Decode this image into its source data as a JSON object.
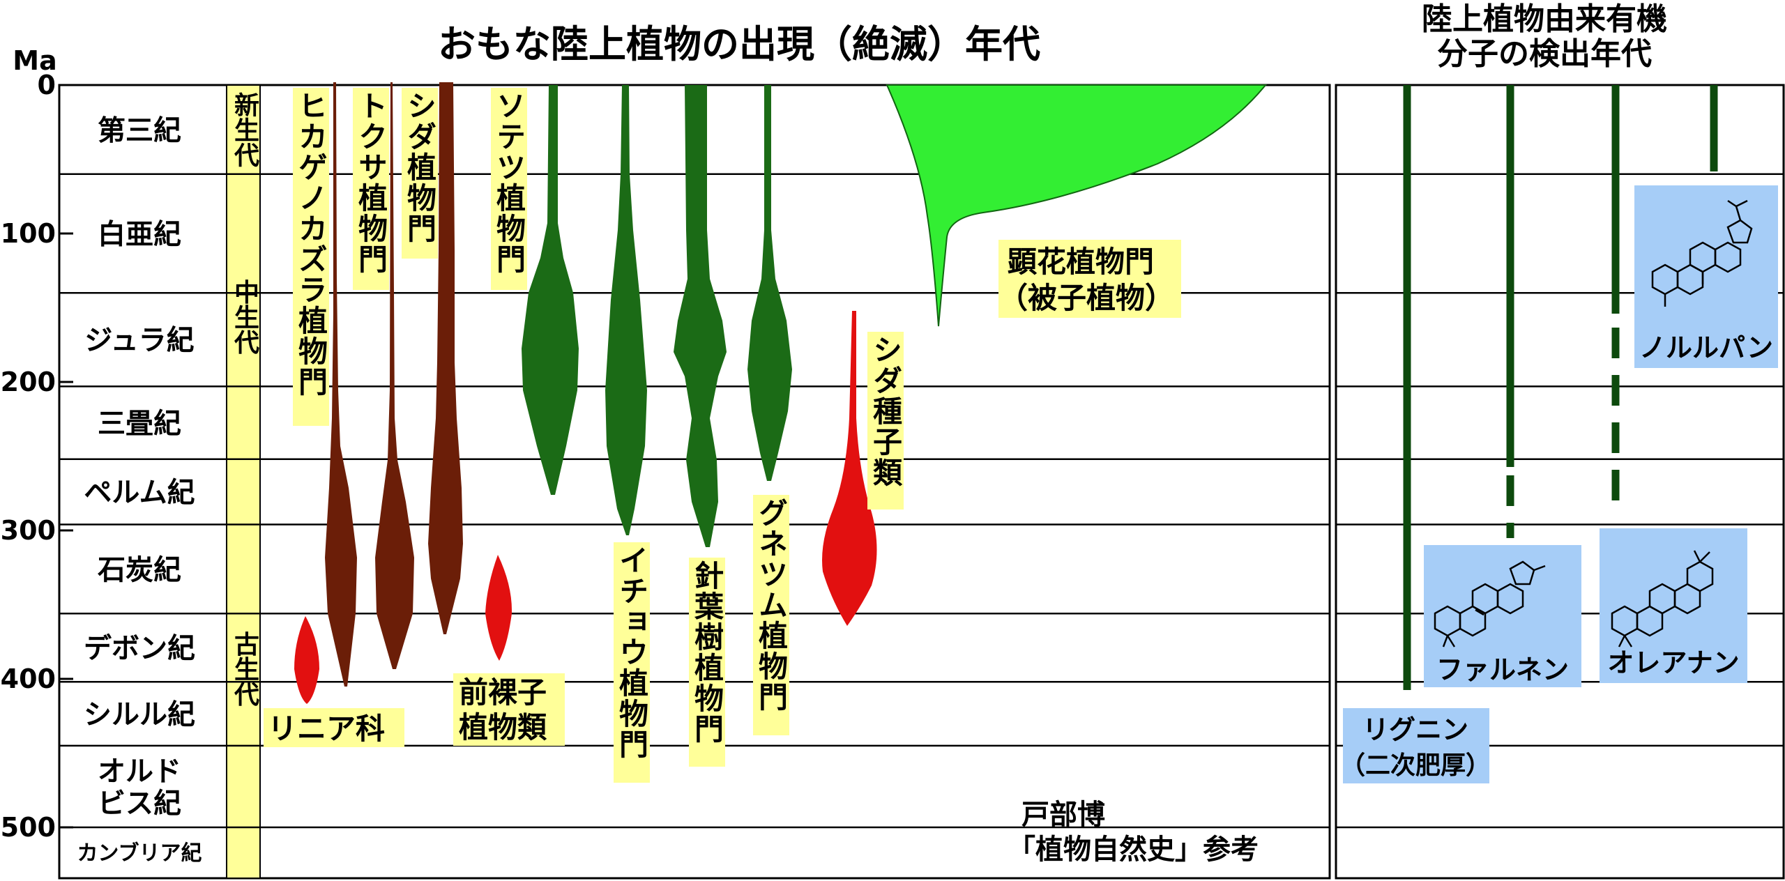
{
  "title": "おもな陸上植物の出現（絶滅）年代",
  "right_title": [
    "陸上植物由来有機",
    "分子の検出年代"
  ],
  "axis_unit": "Ma",
  "ticks": [
    {
      "label": "0",
      "ma": 0
    },
    {
      "label": "100",
      "ma": 100
    },
    {
      "label": "200",
      "ma": 200
    },
    {
      "label": "300",
      "ma": 300
    },
    {
      "label": "400",
      "ma": 400
    },
    {
      "label": "500",
      "ma": 500
    }
  ],
  "periods": [
    {
      "name": "第三紀",
      "start": 0,
      "end": 60
    },
    {
      "name": "白亜紀",
      "start": 60,
      "end": 140
    },
    {
      "name": "ジュラ紀",
      "start": 140,
      "end": 203
    },
    {
      "name": "三畳紀",
      "start": 203,
      "end": 252
    },
    {
      "name": "ペルム紀",
      "start": 252,
      "end": 296
    },
    {
      "name": "石炭紀",
      "start": 296,
      "end": 356
    },
    {
      "name": "デボン紀",
      "start": 356,
      "end": 402
    },
    {
      "name": "シルル紀",
      "start": 402,
      "end": 445
    },
    {
      "name": "オルド\nビス紀",
      "start": 445,
      "end": 500
    },
    {
      "name": "カンブリア紀",
      "start": 500,
      "end": 534
    }
  ],
  "eras": [
    {
      "name": "新生代",
      "start": 0,
      "end": 60
    },
    {
      "name": "中生代",
      "start": 60,
      "end": 252
    },
    {
      "name": "古生代",
      "start": 252,
      "end": 534
    }
  ],
  "taxa": [
    {
      "label": "ヒカゲノカズラ植物門",
      "group": "brown"
    },
    {
      "label": "トクサ植物門",
      "group": "brown"
    },
    {
      "label": "シダ植物門",
      "group": "brown"
    },
    {
      "label": "ソテツ植物門",
      "group": "green"
    },
    {
      "label": "イチョウ植物門",
      "group": "green"
    },
    {
      "label": "針葉樹植物門",
      "group": "green"
    },
    {
      "label": "グネツム植物門",
      "group": "green"
    },
    {
      "label": "顕花植物門",
      "group": "lightgreen"
    },
    {
      "label": "（被子植物）",
      "group": "lightgreen"
    },
    {
      "label": "シダ種子類",
      "group": "red"
    },
    {
      "label": "リニア科",
      "group": "red"
    },
    {
      "label": "前裸子",
      "group": "red"
    },
    {
      "label": "植物類",
      "group": "red"
    }
  ],
  "molecules": [
    {
      "label": "リグニン",
      "sublabel": "（二次肥厚）"
    },
    {
      "label": "ファルネン",
      "sublabel": ""
    },
    {
      "label": "オレアナン",
      "sublabel": ""
    },
    {
      "label": "ノルルパン",
      "sublabel": ""
    }
  ],
  "credit": [
    "戸部博",
    "「植物自然史」参考"
  ],
  "colors": {
    "brown": "#6b1e08",
    "green": "#1b6b16",
    "lightgreen": "#33ee33",
    "red": "#e21010",
    "label_bg": "#ffff99",
    "era_bg": "#ffff99",
    "molecule_bg": "#a6cdf7"
  }
}
